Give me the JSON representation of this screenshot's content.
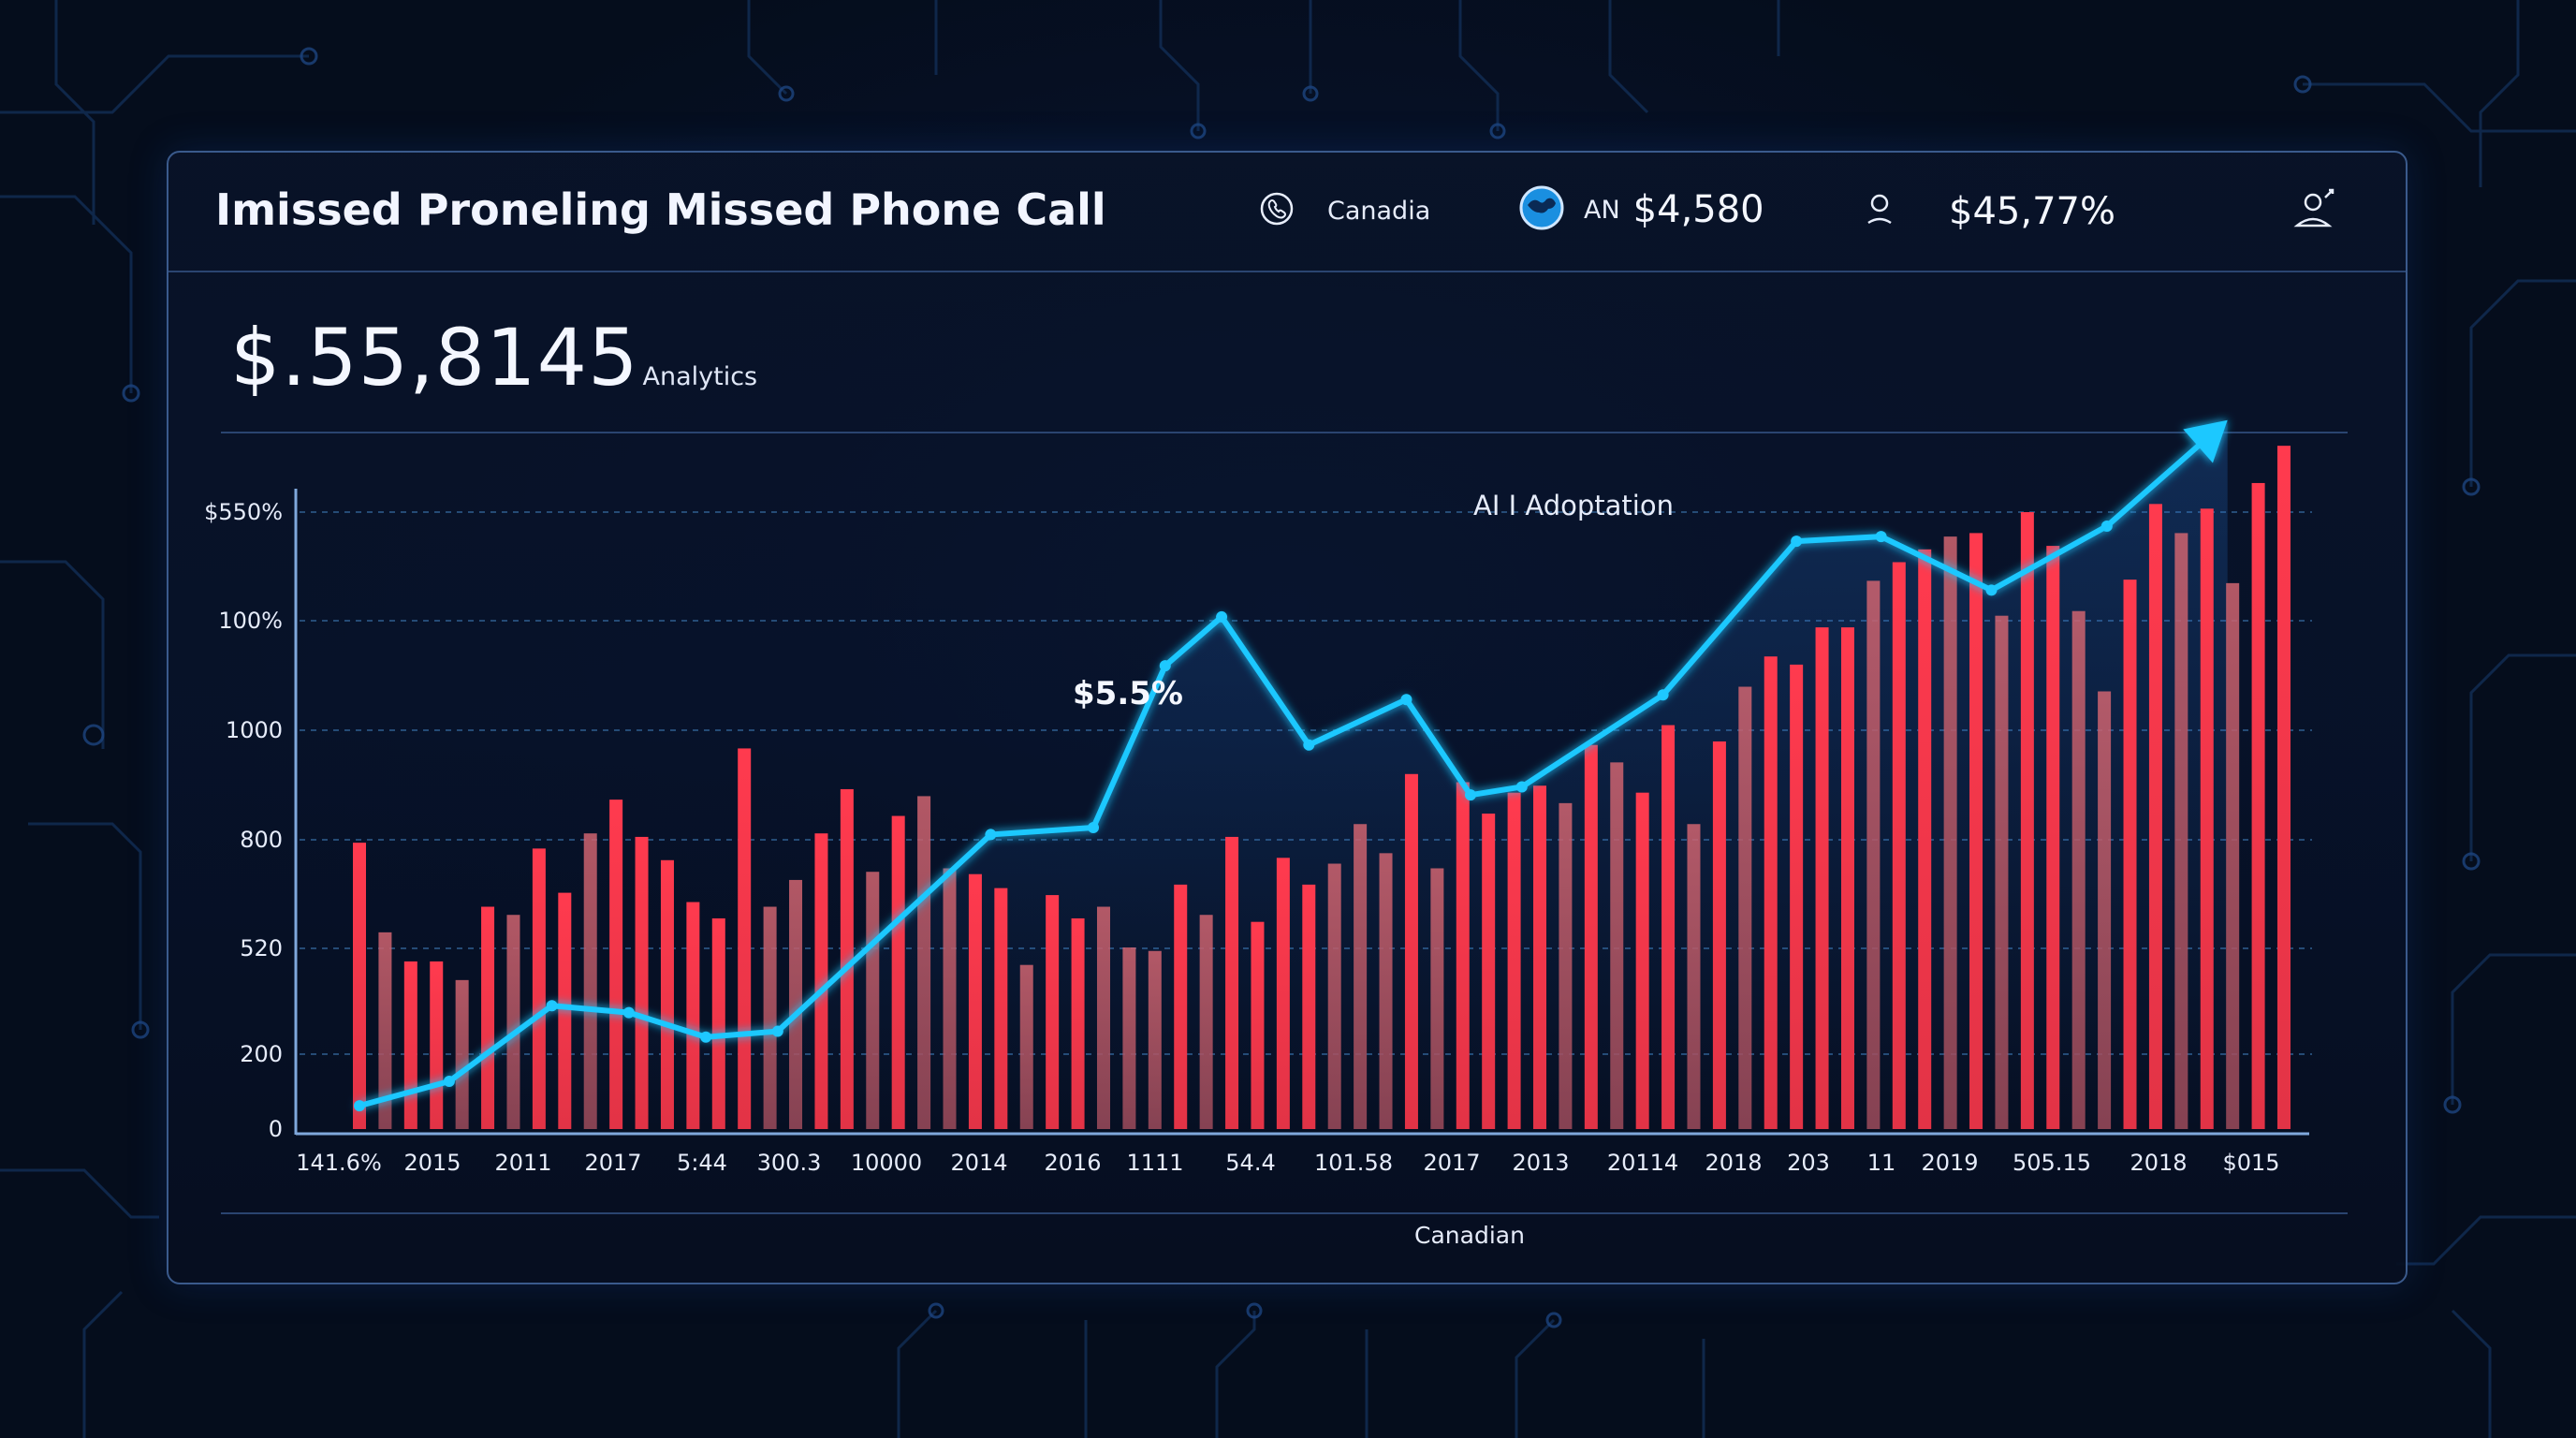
{
  "header": {
    "title": "Imissed Proneling Missed Phone Call",
    "items": [
      {
        "icon": "phone-icon",
        "label": "Canadia"
      },
      {
        "icon": "globe-icon",
        "prefix": "AN",
        "value": "$4,580"
      },
      {
        "icon": "user-icon",
        "value": "$45,77%"
      },
      {
        "icon": "user-settings-icon"
      }
    ]
  },
  "summary": {
    "value": "$.55,8145",
    "label": "Analytics"
  },
  "colors": {
    "bar_bright": "#ff3b4e",
    "bar_dim": "#c25c68",
    "line": "#1ec8ff",
    "grid": "#2d5a8a",
    "background": "#050d1c"
  },
  "chart_data": {
    "type": "bar",
    "title": "",
    "annotations": [
      {
        "text": "AI I Adoptation",
        "near_value": "top"
      },
      {
        "text": "$5.5%",
        "near_point": 10
      }
    ],
    "xlabel": "Canadian",
    "ylabel": "",
    "y_tick_labels": [
      "0",
      "200",
      "520",
      "800",
      "1000",
      "100%",
      "$550%"
    ],
    "x_tick_labels": [
      "141.6%",
      "2015",
      "2011",
      "2017",
      "5:44",
      "300.3",
      "10000",
      "2014",
      "2016",
      "1111",
      "54.4",
      "101.58",
      "2017",
      "2013",
      "20114",
      "2018",
      "203",
      "11",
      "2019",
      "505.15",
      "2018",
      "$015"
    ],
    "ylim": [
      0,
      6
    ],
    "grid": true,
    "bars": [
      {
        "value": 2.46,
        "dim": false
      },
      {
        "value": 1.69,
        "dim": true
      },
      {
        "value": 1.44,
        "dim": false
      },
      {
        "value": 1.44,
        "dim": false
      },
      {
        "value": 1.28,
        "dim": true
      },
      {
        "value": 1.91,
        "dim": false
      },
      {
        "value": 1.84,
        "dim": true
      },
      {
        "value": 2.41,
        "dim": false
      },
      {
        "value": 2.03,
        "dim": false
      },
      {
        "value": 2.54,
        "dim": true
      },
      {
        "value": 2.83,
        "dim": false
      },
      {
        "value": 2.51,
        "dim": false
      },
      {
        "value": 2.31,
        "dim": false
      },
      {
        "value": 1.95,
        "dim": false
      },
      {
        "value": 1.81,
        "dim": false
      },
      {
        "value": 3.27,
        "dim": false
      },
      {
        "value": 1.91,
        "dim": true
      },
      {
        "value": 2.14,
        "dim": true
      },
      {
        "value": 2.54,
        "dim": false
      },
      {
        "value": 2.92,
        "dim": false
      },
      {
        "value": 2.21,
        "dim": true
      },
      {
        "value": 2.69,
        "dim": false
      },
      {
        "value": 2.86,
        "dim": true
      },
      {
        "value": 2.24,
        "dim": true
      },
      {
        "value": 2.19,
        "dim": false
      },
      {
        "value": 2.07,
        "dim": false
      },
      {
        "value": 1.41,
        "dim": true
      },
      {
        "value": 2.01,
        "dim": false
      },
      {
        "value": 1.81,
        "dim": false
      },
      {
        "value": 1.91,
        "dim": true
      },
      {
        "value": 1.56,
        "dim": true
      },
      {
        "value": 1.53,
        "dim": true
      },
      {
        "value": 2.1,
        "dim": false
      },
      {
        "value": 1.84,
        "dim": true
      },
      {
        "value": 2.51,
        "dim": false
      },
      {
        "value": 1.78,
        "dim": false
      },
      {
        "value": 2.33,
        "dim": false
      },
      {
        "value": 2.1,
        "dim": false
      },
      {
        "value": 2.28,
        "dim": true
      },
      {
        "value": 2.62,
        "dim": true
      },
      {
        "value": 2.37,
        "dim": true
      },
      {
        "value": 3.05,
        "dim": false
      },
      {
        "value": 2.24,
        "dim": true
      },
      {
        "value": 2.98,
        "dim": false
      },
      {
        "value": 2.71,
        "dim": false
      },
      {
        "value": 2.89,
        "dim": false
      },
      {
        "value": 2.95,
        "dim": false
      },
      {
        "value": 2.8,
        "dim": true
      },
      {
        "value": 3.3,
        "dim": false
      },
      {
        "value": 3.15,
        "dim": true
      },
      {
        "value": 2.89,
        "dim": false
      },
      {
        "value": 3.47,
        "dim": false
      },
      {
        "value": 2.62,
        "dim": true
      },
      {
        "value": 3.33,
        "dim": false
      },
      {
        "value": 3.8,
        "dim": true
      },
      {
        "value": 4.06,
        "dim": false
      },
      {
        "value": 3.99,
        "dim": false
      },
      {
        "value": 4.31,
        "dim": false
      },
      {
        "value": 4.31,
        "dim": false
      },
      {
        "value": 4.71,
        "dim": true
      },
      {
        "value": 4.87,
        "dim": false
      },
      {
        "value": 4.98,
        "dim": false
      },
      {
        "value": 5.09,
        "dim": true
      },
      {
        "value": 5.12,
        "dim": false
      },
      {
        "value": 4.41,
        "dim": true
      },
      {
        "value": 5.3,
        "dim": false
      },
      {
        "value": 5.01,
        "dim": false
      },
      {
        "value": 4.45,
        "dim": true
      },
      {
        "value": 3.76,
        "dim": true
      },
      {
        "value": 4.72,
        "dim": false
      },
      {
        "value": 5.37,
        "dim": false
      },
      {
        "value": 5.12,
        "dim": true
      },
      {
        "value": 5.33,
        "dim": false
      },
      {
        "value": 4.69,
        "dim": true
      },
      {
        "value": 5.55,
        "dim": false
      },
      {
        "value": 5.87,
        "dim": false
      }
    ],
    "series": [
      {
        "type": "line",
        "points": [
          {
            "x": 0,
            "y": 0.2
          },
          {
            "x": 3.5,
            "y": 0.41
          },
          {
            "x": 7.5,
            "y": 1.06
          },
          {
            "x": 10.5,
            "y": 1.0
          },
          {
            "x": 13.5,
            "y": 0.79
          },
          {
            "x": 16.3,
            "y": 0.84
          },
          {
            "x": 24.6,
            "y": 2.53
          },
          {
            "x": 28.6,
            "y": 2.59
          },
          {
            "x": 31.4,
            "y": 3.98
          },
          {
            "x": 33.6,
            "y": 4.4
          },
          {
            "x": 37.0,
            "y": 3.3
          },
          {
            "x": 40.8,
            "y": 3.69
          },
          {
            "x": 43.3,
            "y": 2.87
          },
          {
            "x": 45.3,
            "y": 2.94
          },
          {
            "x": 50.8,
            "y": 3.73
          },
          {
            "x": 56.0,
            "y": 5.05
          },
          {
            "x": 59.3,
            "y": 5.09
          },
          {
            "x": 63.6,
            "y": 4.63
          },
          {
            "x": 68.1,
            "y": 5.18
          },
          {
            "x": 72.8,
            "y": 6.09
          }
        ]
      }
    ]
  }
}
